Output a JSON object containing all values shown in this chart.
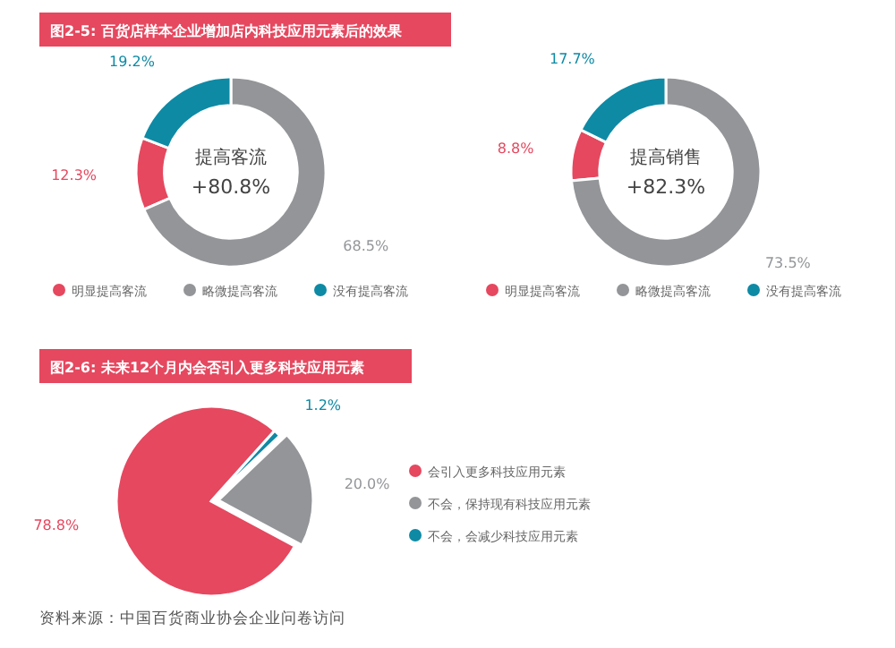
{
  "chart_data": [
    {
      "type": "donut",
      "title": "图2-5: 百货店样本企业增加店内科技应用元素后的效果",
      "categories": [
        "明显提高客流",
        "略微提高客流",
        "没有提高客流"
      ],
      "values": [
        12.3,
        68.5,
        19.2
      ],
      "colors": [
        "#e5485f",
        "#939598",
        "#0e8aa5"
      ],
      "value_labels": [
        "12.3%",
        "68.5%",
        "19.2%"
      ],
      "annotations": [
        "提高客流",
        "+80.8%"
      ],
      "legend": "bottom"
    },
    {
      "type": "donut",
      "categories": [
        "明显提高客流",
        "略微提高客流",
        "没有提高客流"
      ],
      "values": [
        8.8,
        73.5,
        17.7
      ],
      "colors": [
        "#e5485f",
        "#939598",
        "#0e8aa5"
      ],
      "value_labels": [
        "8.8%",
        "73.5%",
        "17.7%"
      ],
      "annotations": [
        "提高销售",
        "+82.3%"
      ],
      "legend": "bottom"
    },
    {
      "type": "pie",
      "title": "图2-6: 未来12个月内会否引入更多科技应用元素",
      "categories": [
        "会引入更多科技应用元素",
        "不会，保持现有科技应用元素",
        "不会，会减少科技应用元素"
      ],
      "values": [
        78.8,
        20.0,
        1.2
      ],
      "colors": [
        "#e5485f",
        "#939598",
        "#0e8aa5"
      ],
      "value_labels": [
        "78.8%",
        "20.0%",
        "1.2%"
      ],
      "annotations": [
        "资料来源：中国百货商业协会企业问卷访问"
      ],
      "legend": "right"
    }
  ]
}
